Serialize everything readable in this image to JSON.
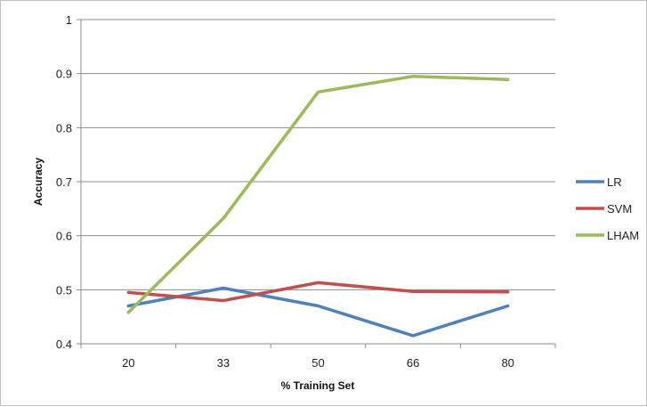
{
  "chart_data": {
    "type": "line",
    "categories": [
      "20",
      "33",
      "50",
      "66",
      "80"
    ],
    "series": [
      {
        "name": "LR",
        "color": "#4f81bd",
        "values": [
          0.47,
          0.503,
          0.47,
          0.415,
          0.47
        ]
      },
      {
        "name": "SVM",
        "color": "#c0504d",
        "values": [
          0.495,
          0.48,
          0.513,
          0.497,
          0.496
        ]
      },
      {
        "name": "LHAM",
        "color": "#9bbb59",
        "values": [
          0.458,
          0.632,
          0.866,
          0.895,
          0.889
        ]
      }
    ],
    "xlabel": "% Training Set",
    "ylabel": "Accuracy",
    "ylim": [
      0.4,
      1
    ],
    "yticks": [
      "0.4",
      "0.5",
      "0.6",
      "0.7",
      "0.8",
      "0.9",
      "1"
    ],
    "grid": "horizontal",
    "legend_position": "right"
  }
}
